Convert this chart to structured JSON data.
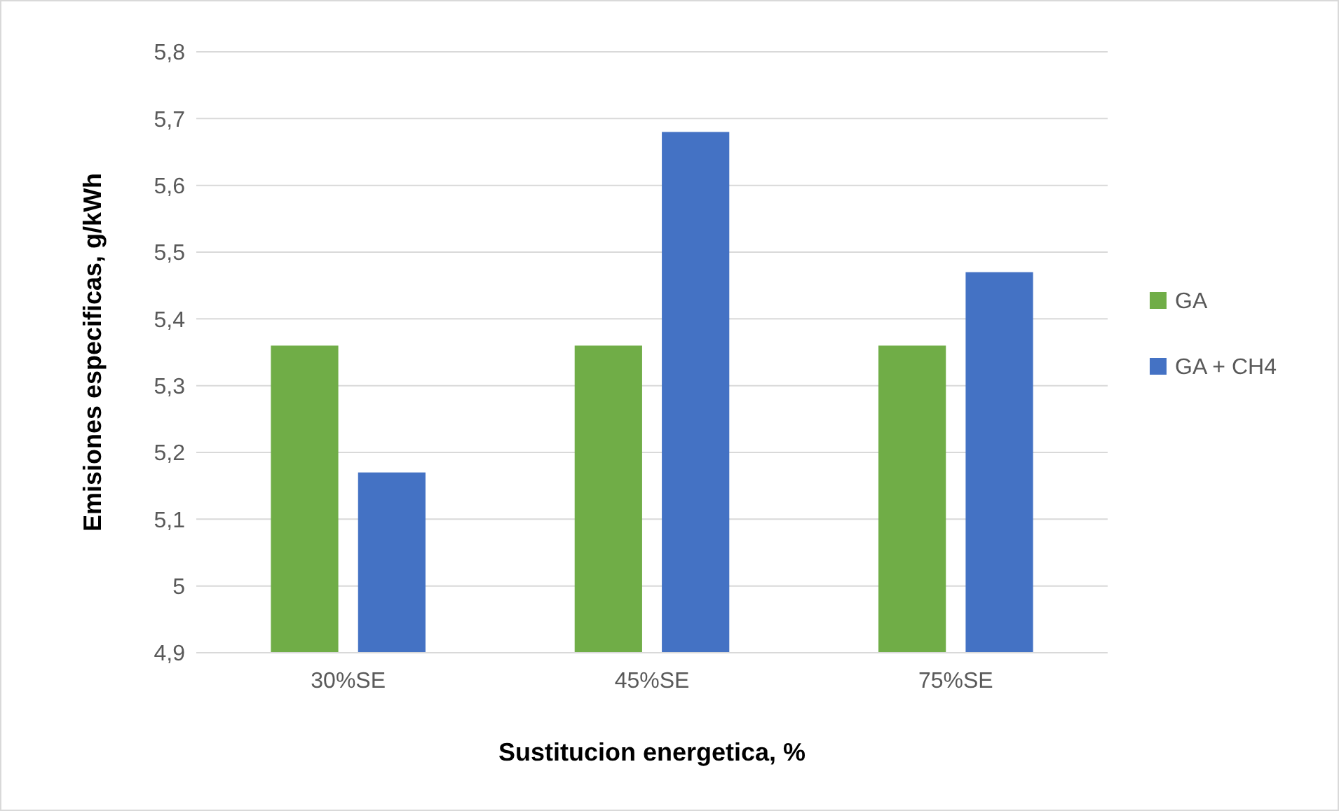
{
  "chart_data": {
    "type": "bar",
    "xlabel": "Sustitucion energetica, %",
    "ylabel": "Emisiones especificas, g/kWh",
    "categories": [
      "30%SE",
      "45%SE",
      "75%SE"
    ],
    "series": [
      {
        "name": "GA",
        "color": "#70ad47",
        "values": [
          5.36,
          5.36,
          5.36
        ]
      },
      {
        "name": "GA + CH4",
        "color": "#4472c4",
        "values": [
          5.17,
          5.68,
          5.47
        ]
      }
    ],
    "ylim": [
      4.9,
      5.8
    ],
    "yticks": [
      {
        "value": 4.9,
        "label": "4,9"
      },
      5,
      {
        "value": 5.1,
        "label": "5,1"
      },
      {
        "value": 5.2,
        "label": "5,2"
      },
      {
        "value": 5.3,
        "label": "5,3"
      },
      {
        "value": 5.4,
        "label": "5,4"
      },
      {
        "value": 5.5,
        "label": "5,5"
      },
      {
        "value": 5.6,
        "label": "5,6"
      },
      {
        "value": 5.7,
        "label": "5,7"
      },
      {
        "value": 5.8,
        "label": "5,8"
      }
    ],
    "grid": "y",
    "legend": "right"
  }
}
